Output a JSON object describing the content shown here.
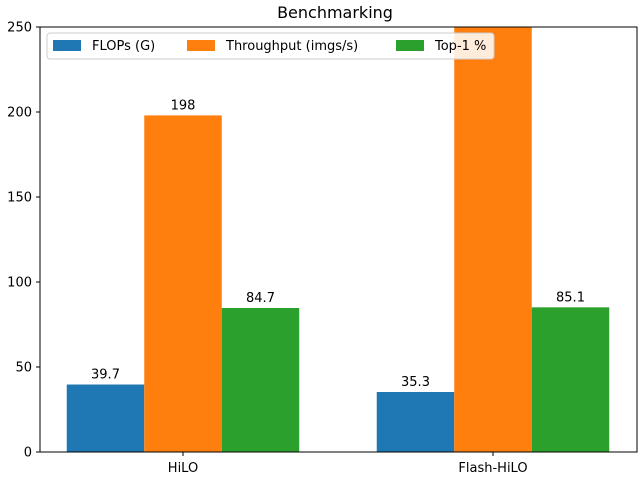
{
  "chart_data": {
    "type": "bar",
    "title": "Benchmarking",
    "xlabel": "",
    "ylabel": "",
    "categories": [
      "HiLO",
      "Flash-HiLO"
    ],
    "ylim": [
      0,
      250
    ],
    "yticks": [
      0,
      50,
      100,
      150,
      200,
      250
    ],
    "grid": false,
    "legend_position": "top-left",
    "legend_columns": 3,
    "series": [
      {
        "name": "FLOPs (G)",
        "values": [
          39.7,
          35.3
        ],
        "labels": [
          "39.7",
          "35.3"
        ],
        "color": "#1f77b4"
      },
      {
        "name": "Throughput (imgs/s)",
        "values": [
          198,
          250
        ],
        "labels": [
          "198",
          ""
        ],
        "color": "#ff7f0e"
      },
      {
        "name": "Top-1 %",
        "values": [
          84.7,
          85.1
        ],
        "labels": [
          "84.7",
          "85.1"
        ],
        "color": "#2ca02c"
      }
    ]
  }
}
